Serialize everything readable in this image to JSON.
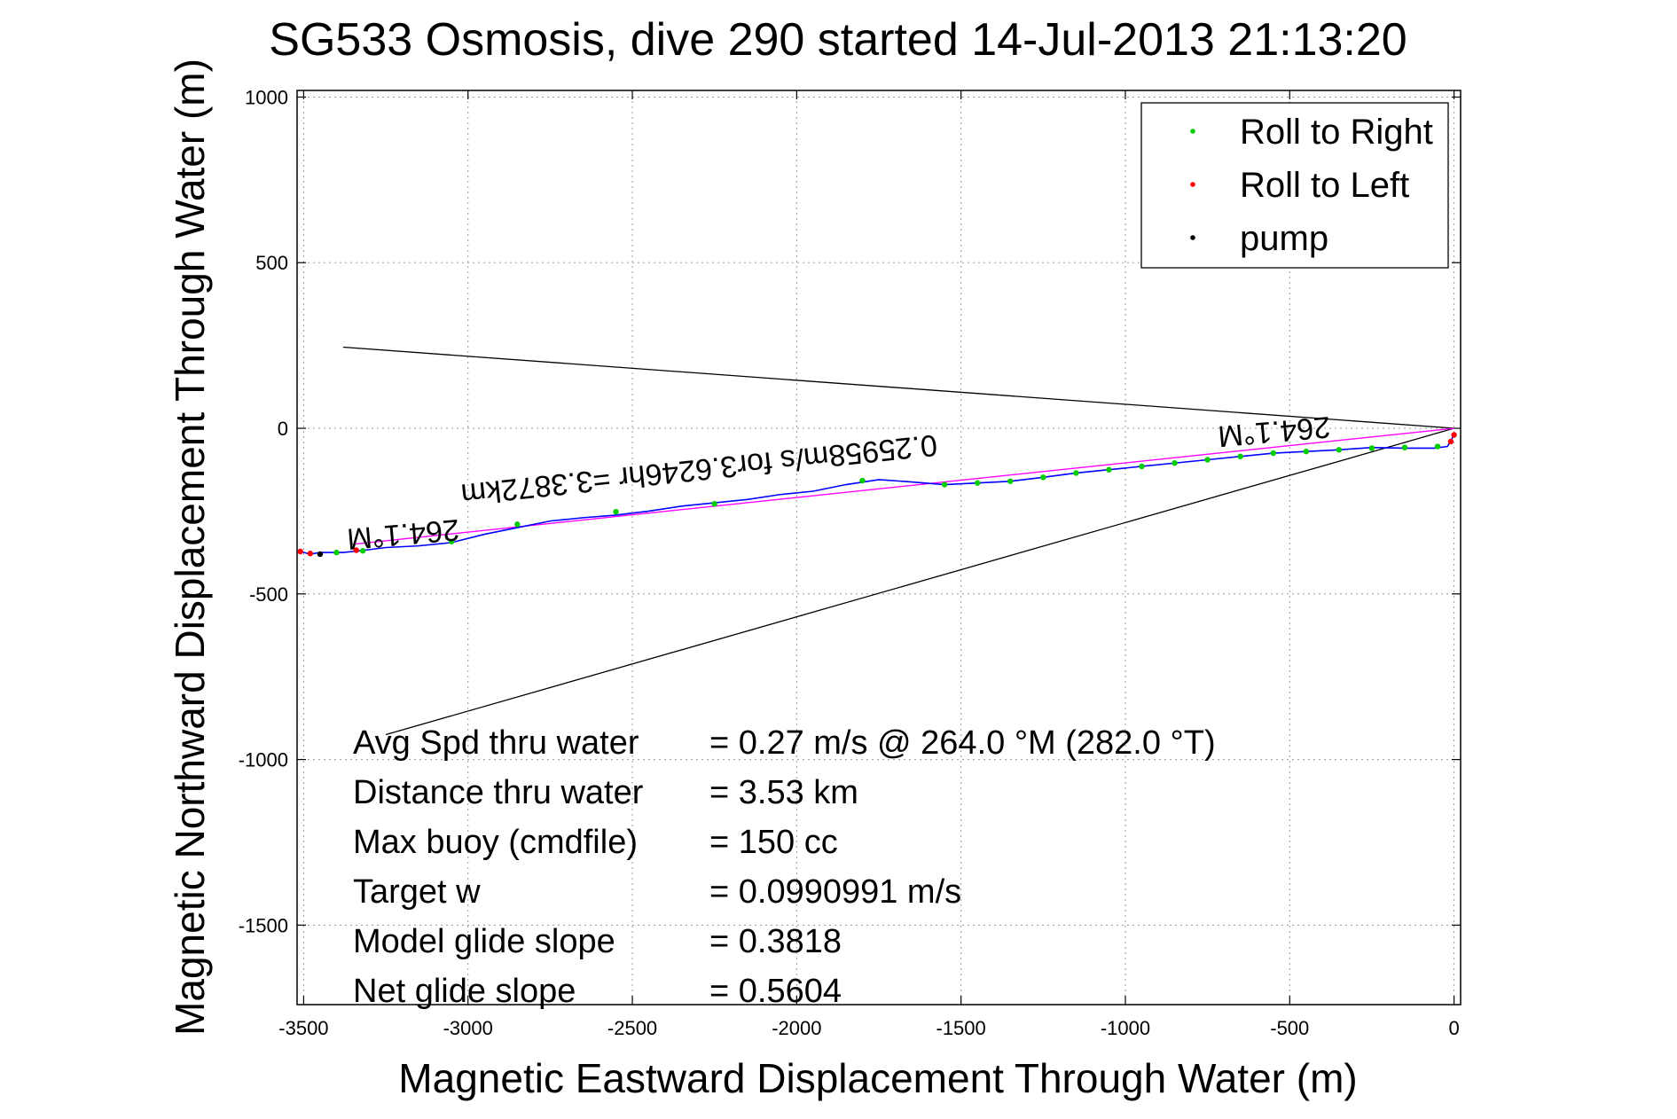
{
  "chart_data": {
    "type": "scatter",
    "title": "SG533 Osmosis, dive 290 started 14-Jul-2013 21:13:20",
    "xlabel": "Magnetic Eastward Displacement Through Water (m)",
    "ylabel": "Magnetic Northward Displacement Through Water (m)",
    "xlim": [
      -3520,
      20
    ],
    "ylim": [
      -1740,
      1020
    ],
    "xticks": [
      -3500,
      -3000,
      -2500,
      -2000,
      -1500,
      -1000,
      -500,
      0
    ],
    "yticks": [
      -1500,
      -1000,
      -500,
      0,
      500,
      1000
    ],
    "grid": true,
    "legend_position": "top-right",
    "legend": [
      {
        "label": "Roll to Right",
        "color": "#00cc00"
      },
      {
        "label": "Roll to Left",
        "color": "#ff0000"
      },
      {
        "label": "pump",
        "color": "#000000"
      }
    ],
    "track": {
      "name": "track",
      "color": "#0000ff",
      "x": [
        0,
        -20,
        -60,
        -150,
        -250,
        -350,
        -450,
        -550,
        -650,
        -750,
        -850,
        -950,
        -1050,
        -1150,
        -1250,
        -1350,
        -1450,
        -1550,
        -1650,
        -1750,
        -1850,
        -1950,
        -2050,
        -2150,
        -2250,
        -2350,
        -2450,
        -2550,
        -2650,
        -2750,
        -2850,
        -2950,
        -3050,
        -3150,
        -3250,
        -3330,
        -3380,
        -3420,
        -3450,
        -3480,
        -3510
      ],
      "y": [
        -20,
        -55,
        -60,
        -60,
        -58,
        -65,
        -70,
        -75,
        -85,
        -95,
        -105,
        -115,
        -125,
        -135,
        -148,
        -160,
        -165,
        -170,
        -162,
        -155,
        -170,
        -190,
        -200,
        -215,
        -225,
        -235,
        -250,
        -262,
        -270,
        -280,
        -300,
        -320,
        -345,
        -355,
        -360,
        -370,
        -375,
        -375,
        -375,
        -380,
        -372
      ]
    },
    "roll_right_points": {
      "x": [
        -50,
        -150,
        -250,
        -350,
        -450,
        -550,
        -650,
        -750,
        -850,
        -950,
        -1050,
        -1150,
        -1250,
        -1350,
        -1450,
        -1550,
        -1800,
        -2250,
        -2550,
        -2850,
        -3050,
        -3320,
        -3400
      ],
      "y": [
        -55,
        -58,
        -60,
        -65,
        -70,
        -75,
        -85,
        -95,
        -105,
        -115,
        -125,
        -135,
        -148,
        -160,
        -165,
        -170,
        -158,
        -228,
        -252,
        -290,
        -342,
        -370,
        -375
      ]
    },
    "roll_left_points": {
      "x": [
        0,
        -10,
        -3340,
        -3480,
        -3510
      ],
      "y": [
        -20,
        -40,
        -368,
        -378,
        -372
      ]
    },
    "pump_points": {
      "x": [
        -3450
      ],
      "y": [
        -380
      ]
    },
    "heading_line": {
      "color": "#ff00ff",
      "x": [
        0,
        -3350
      ],
      "y": [
        0,
        -350
      ]
    },
    "wedge_lines": {
      "color": "#000000",
      "segments": [
        {
          "x": [
            0,
            -3380
          ],
          "y": [
            0,
            245
          ]
        },
        {
          "x": [
            0,
            -3250
          ],
          "y": [
            0,
            -925
          ]
        }
      ]
    },
    "annotations": [
      {
        "text": "264.1°M",
        "x": -3200,
        "y": -290,
        "rotation": 175
      },
      {
        "text": "264.1°M",
        "x": -550,
        "y": 20,
        "rotation": 175
      },
      {
        "text": "0.25958m/s for3.6246hr =3.3872km",
        "x": -2300,
        "y": -95,
        "rotation": 174
      }
    ],
    "stats": [
      {
        "label": "Avg Spd thru water",
        "value": "=  0.27 m/s @ 264.0 °M (282.0 °T)"
      },
      {
        "label": "Distance thru water",
        "value": "=  3.53 km"
      },
      {
        "label": "Max buoy (cmdfile)",
        "value": "= 150 cc"
      },
      {
        "label": "Target w",
        "value": "= 0.0990991 m/s"
      },
      {
        "label": "Model glide slope",
        "value": "= 0.3818"
      },
      {
        "label": "Net glide slope",
        "value": "= 0.5604"
      }
    ]
  }
}
